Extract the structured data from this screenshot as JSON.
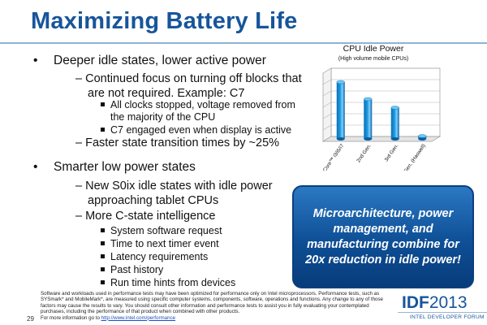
{
  "slide": {
    "title": "Maximizing Battery Life",
    "page_number": "29"
  },
  "bullets": {
    "b1": {
      "text": "Deeper idle states, lower active power",
      "s1": "– Continued focus on turning off blocks that",
      "s1_cont": "are not required.  Example: C7",
      "s1_a": "All clocks stopped, voltage removed from",
      "s1_a_cont": "the majority of the CPU",
      "s1_b": "C7 engaged even when display is active",
      "s2": "– Faster state transition times by ~25%"
    },
    "b2": {
      "text": "Smarter low power states",
      "s1": "– New S0ix idle states with idle power",
      "s1_cont": "approaching tablet CPUs",
      "s2": "– More C-state intelligence",
      "items": [
        "System software request",
        "Time to next timer event",
        "Latency requirements",
        "Past history",
        "Run time hints from devices"
      ]
    }
  },
  "chart_data": {
    "type": "bar",
    "title": "CPU Idle Power",
    "subtitle": "(High volume mobile CPUs)",
    "categories": [
      "Intel® Core™ i3/i5/i7",
      "2nd Gen.",
      "3rd Gen.",
      "4th Gen. (Haswell)"
    ],
    "values": [
      1.0,
      0.7,
      0.55,
      0.05
    ],
    "ylim": [
      0,
      1.2
    ],
    "grid": true,
    "legend": "none",
    "bar_color": "#1e9be0"
  },
  "callout": {
    "text": "Microarchitecture, power management, and manufacturing combine for 20x reduction in idle power!"
  },
  "disclaimer": {
    "text": "Software and workloads used in performance tests may have been optimized for performance only on Intel microprocessors. Performance tests, such as SYSmark* and MobileMark*, are measured using specific computer systems, components, software, operations and functions. Any change to any of those factors may cause the results to vary. You should consult other information and performance tests to assist you in fully evaluating your contemplated purchases, including the performance of that product when combined with other products.",
    "more_prefix": "For more information go to ",
    "link": "http://www.intel.com/performance"
  },
  "branding": {
    "logo_bold": "IDF",
    "logo_year": "2013",
    "forum": "INTEL DEVELOPER FORUM"
  }
}
